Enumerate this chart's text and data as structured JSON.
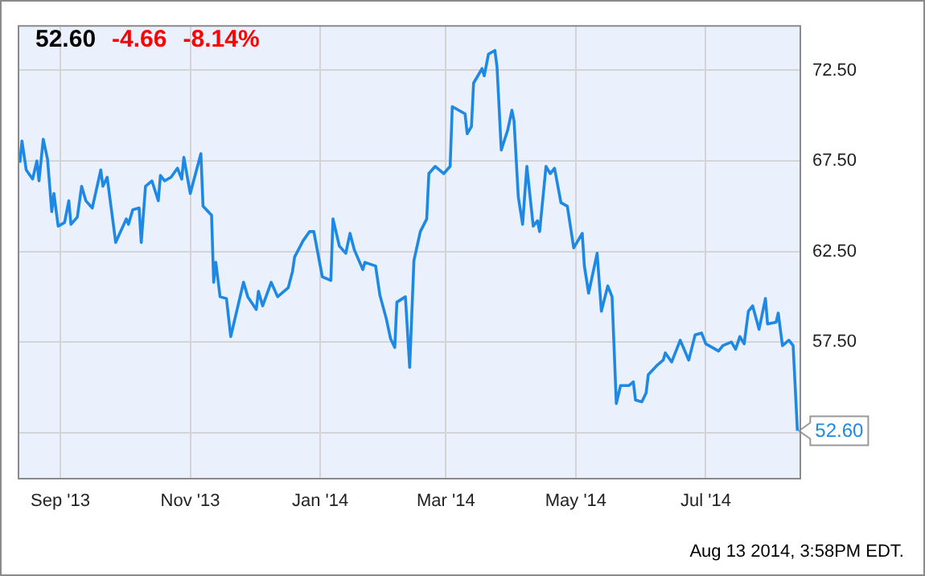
{
  "chart_data": {
    "type": "line",
    "title": "52.60",
    "annotations": [
      "-4.66",
      "-8.14%",
      "Aug 13 2014, 3:58PM EDT."
    ],
    "x": [
      "2013-08-13",
      "2013-08-14",
      "2013-08-16",
      "2013-08-19",
      "2013-08-21",
      "2013-08-22",
      "2013-08-24",
      "2013-08-26",
      "2013-08-28",
      "2013-08-29",
      "2013-08-31",
      "2013-09-03",
      "2013-09-05",
      "2013-09-06",
      "2013-09-09",
      "2013-09-11",
      "2013-09-13",
      "2013-09-16",
      "2013-09-20",
      "2013-09-21",
      "2013-09-23",
      "2013-09-27",
      "2013-10-02",
      "2013-10-03",
      "2013-10-05",
      "2013-10-08",
      "2013-10-09",
      "2013-10-11",
      "2013-10-14",
      "2013-10-17",
      "2013-10-18",
      "2013-10-20",
      "2013-10-23",
      "2013-10-26",
      "2013-10-28",
      "2013-10-29",
      "2013-11-01",
      "2013-11-06",
      "2013-11-07",
      "2013-11-11",
      "2013-11-12",
      "2013-11-13",
      "2013-11-15",
      "2013-11-18",
      "2013-11-20",
      "2013-11-26",
      "2013-11-28",
      "2013-12-02",
      "2013-12-03",
      "2013-12-05",
      "2013-12-09",
      "2013-12-12",
      "2013-12-17",
      "2013-12-19",
      "2013-12-20",
      "2013-12-24",
      "2013-12-27",
      "2013-12-29",
      "2014-01-02",
      "2014-01-06",
      "2014-01-07",
      "2014-01-10",
      "2014-01-13",
      "2014-01-15",
      "2014-01-17",
      "2014-01-21",
      "2014-01-22",
      "2014-01-27",
      "2014-01-29",
      "2014-02-01",
      "2014-02-03",
      "2014-02-05",
      "2014-02-06",
      "2014-02-10",
      "2014-02-12",
      "2014-02-14",
      "2014-02-17",
      "2014-02-20",
      "2014-02-21",
      "2014-02-24",
      "2014-02-28",
      "2014-03-03",
      "2014-03-04",
      "2014-03-07",
      "2014-03-10",
      "2014-03-11",
      "2014-03-13",
      "2014-03-14",
      "2014-03-18",
      "2014-03-19",
      "2014-03-21",
      "2014-03-24",
      "2014-03-25",
      "2014-03-27",
      "2014-03-30",
      "2014-04-01",
      "2014-04-02",
      "2014-04-04",
      "2014-04-06",
      "2014-04-08",
      "2014-04-11",
      "2014-04-13",
      "2014-04-14",
      "2014-04-17",
      "2014-04-19",
      "2014-04-21",
      "2014-04-24",
      "2014-04-27",
      "2014-04-30",
      "2014-05-04",
      "2014-05-05",
      "2014-05-07",
      "2014-05-11",
      "2014-05-13",
      "2014-05-16",
      "2014-05-18",
      "2014-05-20",
      "2014-05-22",
      "2014-05-26",
      "2014-05-28",
      "2014-05-29",
      "2014-06-01",
      "2014-06-03",
      "2014-06-04",
      "2014-06-08",
      "2014-06-11",
      "2014-06-12",
      "2014-06-15",
      "2014-06-19",
      "2014-06-23",
      "2014-06-26",
      "2014-06-29",
      "2014-07-01",
      "2014-07-07",
      "2014-07-09",
      "2014-07-13",
      "2014-07-15",
      "2014-07-17",
      "2014-07-19",
      "2014-07-21",
      "2014-07-23",
      "2014-07-26",
      "2014-07-29",
      "2014-07-30",
      "2014-08-03",
      "2014-08-04",
      "2014-08-06",
      "2014-08-09",
      "2014-08-11",
      "2014-08-13"
    ],
    "series": [
      {
        "color": "#1e88e5",
        "values": [
          67.4,
          68.6,
          67.0,
          66.5,
          67.5,
          66.4,
          68.7,
          67.6,
          64.7,
          65.7,
          63.9,
          64.1,
          65.3,
          64.0,
          64.4,
          66.1,
          65.3,
          64.9,
          67.0,
          66.1,
          66.6,
          63.0,
          64.3,
          64.0,
          64.8,
          64.9,
          63.0,
          66.1,
          66.4,
          65.3,
          66.7,
          66.4,
          66.6,
          67.1,
          66.5,
          67.7,
          65.7,
          67.9,
          65.0,
          64.5,
          60.8,
          61.9,
          60.0,
          59.9,
          57.8,
          60.8,
          60.0,
          59.3,
          60.3,
          59.5,
          60.8,
          60.0,
          60.5,
          61.4,
          62.2,
          63.1,
          63.6,
          63.6,
          61.1,
          60.9,
          64.3,
          62.8,
          62.4,
          63.5,
          62.6,
          61.5,
          61.9,
          61.7,
          60.1,
          58.8,
          57.7,
          57.2,
          59.7,
          60.0,
          56.1,
          62.0,
          63.6,
          64.3,
          66.8,
          67.2,
          66.8,
          67.2,
          70.5,
          70.3,
          70.1,
          69.0,
          69.4,
          71.8,
          72.6,
          72.2,
          73.4,
          73.6,
          72.7,
          68.1,
          69.2,
          70.3,
          69.7,
          65.5,
          64.0,
          67.2,
          63.9,
          64.2,
          63.6,
          67.2,
          66.8,
          67.1,
          65.2,
          65.0,
          62.7,
          63.5,
          61.7,
          60.2,
          62.4,
          59.2,
          60.6,
          60.0,
          54.1,
          55.1,
          55.1,
          55.3,
          54.3,
          54.2,
          54.7,
          55.7,
          56.2,
          56.5,
          56.9,
          56.4,
          57.6,
          56.5,
          57.9,
          58.0,
          57.4,
          57.0,
          57.3,
          57.5,
          57.1,
          57.8,
          57.4,
          59.2,
          59.5,
          58.2,
          59.9,
          58.5,
          58.6,
          59.1,
          57.3,
          57.6,
          57.3,
          52.6
        ],
        "value_labels": [
          null,
          null,
          null,
          null,
          null,
          null,
          null,
          null,
          null,
          null,
          null,
          null,
          null,
          null,
          null,
          null,
          null,
          null,
          null,
          null,
          null,
          null,
          null,
          null,
          null,
          null,
          null,
          null,
          null,
          null,
          null,
          null,
          null,
          null,
          null,
          null,
          null,
          null,
          null,
          null,
          null,
          null,
          null,
          null,
          null,
          null,
          null,
          null,
          null,
          null,
          null,
          null,
          null,
          null,
          null,
          null,
          null,
          null,
          null,
          null,
          null,
          null,
          null,
          null,
          null,
          null,
          null,
          null,
          null,
          null,
          null,
          null,
          null,
          null,
          null,
          null,
          null,
          null,
          null,
          null,
          null,
          null,
          null,
          null,
          null,
          null,
          null,
          null,
          null,
          null,
          null,
          null,
          null,
          null,
          null,
          null,
          null,
          null,
          null,
          null,
          null,
          null,
          null,
          null,
          null,
          null,
          null,
          null,
          null,
          null,
          null,
          null,
          null,
          null,
          null,
          null,
          null,
          null,
          null,
          null,
          null,
          null,
          null,
          null,
          null,
          null,
          null,
          null,
          null,
          null,
          null,
          null,
          null,
          null,
          null,
          null,
          null,
          null,
          null,
          null,
          null,
          null,
          null,
          null,
          null,
          null,
          null,
          null,
          null,
          "52.60"
        ]
      }
    ],
    "xlim": [
      "2013-08-12",
      "2014-08-14"
    ],
    "xticks": [
      {
        "value": "2013-09-01",
        "label": "Sep '13"
      },
      {
        "value": "2013-11-01",
        "label": "Nov '13"
      },
      {
        "value": "2014-01-01",
        "label": "Jan '14"
      },
      {
        "value": "2014-03-01",
        "label": "Mar '14"
      },
      {
        "value": "2014-05-01",
        "label": "May '14"
      },
      {
        "value": "2014-07-01",
        "label": "Jul '14"
      }
    ],
    "ylim": [
      50,
      75
    ],
    "yticks": [
      {
        "value": 52.5,
        "label": null
      },
      {
        "value": 57.5,
        "label": "57.50"
      },
      {
        "value": 62.5,
        "label": "62.50"
      },
      {
        "value": 67.5,
        "label": "67.50"
      },
      {
        "value": 72.5,
        "label": "72.50"
      }
    ],
    "grid": true,
    "legend": false,
    "marker": "none",
    "line_style": "solid"
  }
}
